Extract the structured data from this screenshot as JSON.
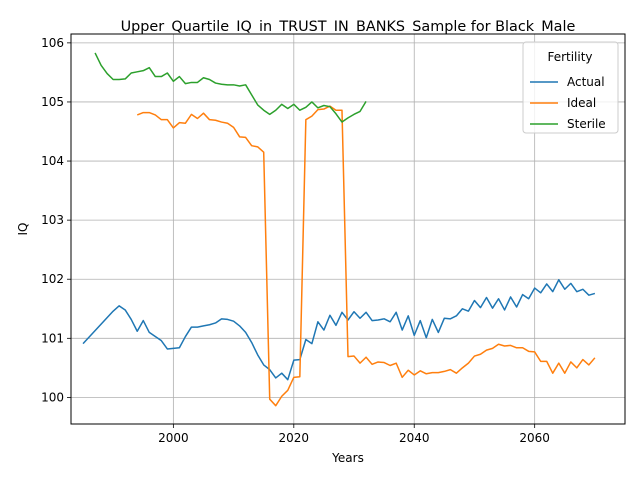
{
  "chart_data": {
    "type": "line",
    "title": "Upper_Quartile_IQ_in_TRUST_IN_BANKS_Sample for Black_Male",
    "xlabel": "Years",
    "ylabel": "IQ",
    "xlim": [
      1983,
      2075
    ],
    "ylim": [
      99.55,
      106.15
    ],
    "xticks": [
      2000,
      2020,
      2040,
      2060
    ],
    "yticks": [
      100,
      101,
      102,
      103,
      104,
      105,
      106
    ],
    "grid": true,
    "legend": {
      "title": "Fertility",
      "position": "top-right"
    },
    "series": [
      {
        "name": "Actual",
        "color": "#1f77b4",
        "x": [
          1985,
          1986,
          1987,
          1988,
          1989,
          1990,
          1991,
          1992,
          1993,
          1994,
          1995,
          1996,
          1997,
          1998,
          1999,
          2000,
          2001,
          2002,
          2003,
          2004,
          2005,
          2006,
          2007,
          2008,
          2009,
          2010,
          2011,
          2012,
          2013,
          2014,
          2015,
          2016,
          2017,
          2018,
          2019,
          2020,
          2021,
          2022,
          2023,
          2024,
          2025,
          2026,
          2027,
          2028,
          2029,
          2030,
          2031,
          2032,
          2033,
          2034,
          2035,
          2036,
          2037,
          2038,
          2039,
          2040,
          2041,
          2042,
          2043,
          2044,
          2045,
          2046,
          2047,
          2048,
          2049,
          2050,
          2051,
          2052,
          2053,
          2054,
          2055,
          2056,
          2057,
          2058,
          2059,
          2060,
          2061,
          2062,
          2063,
          2064,
          2065,
          2066,
          2067,
          2068,
          2069,
          2070
        ],
        "values": [
          100.91,
          101.02,
          101.13,
          101.24,
          101.35,
          101.46,
          101.55,
          101.48,
          101.32,
          101.12,
          101.3,
          101.1,
          101.03,
          100.96,
          100.82,
          100.83,
          100.84,
          101.03,
          101.19,
          101.19,
          101.21,
          101.23,
          101.26,
          101.33,
          101.32,
          101.29,
          101.21,
          101.1,
          100.93,
          100.72,
          100.55,
          100.47,
          100.33,
          100.41,
          100.3,
          100.63,
          100.64,
          100.98,
          100.91,
          101.28,
          101.14,
          101.39,
          101.22,
          101.44,
          101.31,
          101.45,
          101.34,
          101.44,
          101.3,
          101.31,
          101.33,
          101.28,
          101.44,
          101.14,
          101.38,
          101.05,
          101.3,
          101.01,
          101.32,
          101.1,
          101.34,
          101.33,
          101.38,
          101.5,
          101.46,
          101.64,
          101.52,
          101.69,
          101.51,
          101.67,
          101.48,
          101.7,
          101.53,
          101.74,
          101.67,
          101.85,
          101.77,
          101.92,
          101.79,
          101.99,
          101.83,
          101.93,
          101.79,
          101.83,
          101.73,
          101.76
        ]
      },
      {
        "name": "Ideal",
        "color": "#ff7f0e",
        "x": [
          1994,
          1995,
          1996,
          1997,
          1998,
          1999,
          2000,
          2001,
          2002,
          2003,
          2004,
          2005,
          2006,
          2007,
          2008,
          2009,
          2010,
          2011,
          2012,
          2013,
          2014,
          2015,
          2016,
          2017,
          2018,
          2019,
          2020,
          2021,
          2022,
          2023,
          2024,
          2025,
          2026,
          2027,
          2028,
          2029,
          2030,
          2031,
          2032,
          2033,
          2034,
          2035,
          2036,
          2037,
          2038,
          2039,
          2040,
          2041,
          2042,
          2043,
          2044,
          2045,
          2046,
          2047,
          2048,
          2049,
          2050,
          2051,
          2052,
          2053,
          2054,
          2055,
          2056,
          2057,
          2058,
          2059,
          2060,
          2061,
          2062,
          2063,
          2064,
          2065,
          2066,
          2067,
          2068,
          2069,
          2070
        ],
        "values": [
          104.78,
          104.82,
          104.82,
          104.78,
          104.7,
          104.7,
          104.56,
          104.65,
          104.64,
          104.79,
          104.72,
          104.81,
          104.7,
          104.69,
          104.66,
          104.64,
          104.57,
          104.41,
          104.4,
          104.26,
          104.24,
          104.15,
          99.97,
          99.86,
          100.02,
          100.12,
          100.34,
          100.35,
          104.7,
          104.76,
          104.87,
          104.88,
          104.93,
          104.86,
          104.86,
          100.69,
          100.7,
          100.58,
          100.68,
          100.56,
          100.6,
          100.59,
          100.54,
          100.58,
          100.34,
          100.46,
          100.38,
          100.45,
          100.4,
          100.42,
          100.42,
          100.44,
          100.47,
          100.41,
          100.5,
          100.58,
          100.7,
          100.73,
          100.8,
          100.83,
          100.9,
          100.87,
          100.88,
          100.84,
          100.84,
          100.78,
          100.77,
          100.61,
          100.61,
          100.41,
          100.58,
          100.41,
          100.6,
          100.5,
          100.64,
          100.55,
          100.67
        ]
      },
      {
        "name": "Sterile",
        "color": "#2ca02c",
        "x": [
          1987,
          1988,
          1989,
          1990,
          1991,
          1992,
          1993,
          1994,
          1995,
          1996,
          1997,
          1998,
          1999,
          2000,
          2001,
          2002,
          2003,
          2004,
          2005,
          2006,
          2007,
          2008,
          2009,
          2010,
          2011,
          2012,
          2013,
          2014,
          2015,
          2016,
          2017,
          2018,
          2019,
          2020,
          2021,
          2022,
          2023,
          2024,
          2025,
          2026,
          2027,
          2028,
          2029,
          2030,
          2031,
          2032
        ],
        "values": [
          105.83,
          105.62,
          105.48,
          105.38,
          105.38,
          105.39,
          105.49,
          105.51,
          105.53,
          105.58,
          105.43,
          105.43,
          105.49,
          105.35,
          105.43,
          105.31,
          105.33,
          105.33,
          105.41,
          105.38,
          105.32,
          105.3,
          105.29,
          105.29,
          105.27,
          105.29,
          105.12,
          104.95,
          104.86,
          104.79,
          104.86,
          104.96,
          104.89,
          104.96,
          104.86,
          104.91,
          105.0,
          104.9,
          104.94,
          104.92,
          104.8,
          104.66,
          104.73,
          104.79,
          104.84,
          105.01
        ]
      }
    ]
  }
}
